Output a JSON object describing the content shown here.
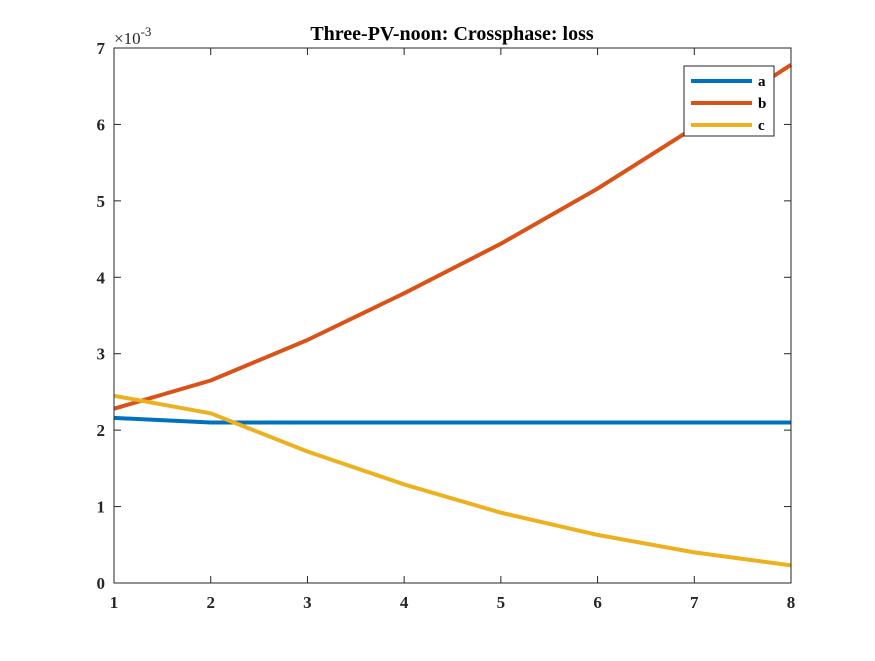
{
  "chart_data": {
    "type": "line",
    "title": "Three-PV-noon: Crossphase: loss",
    "xlabel": "",
    "ylabel": "",
    "xlim": [
      1,
      8
    ],
    "ylim": [
      0,
      7
    ],
    "x_ticks": [
      1,
      2,
      3,
      4,
      5,
      6,
      7,
      8
    ],
    "y_ticks": [
      0,
      1,
      2,
      3,
      4,
      5,
      6,
      7
    ],
    "y_multiplier": "×10",
    "y_multiplier_exponent": "-3",
    "grid": false,
    "legend_position": "top-right",
    "x": [
      1,
      2,
      3,
      4,
      5,
      6,
      7,
      8
    ],
    "series": [
      {
        "name": "a",
        "color": "#0072BD",
        "values": [
          2.16,
          2.1,
          2.1,
          2.1,
          2.1,
          2.1,
          2.1,
          2.1
        ]
      },
      {
        "name": "b",
        "color": "#D95319",
        "values": [
          2.28,
          2.65,
          3.18,
          3.79,
          4.44,
          5.16,
          5.96,
          6.78
        ]
      },
      {
        "name": "c",
        "color": "#EDB120",
        "values": [
          2.45,
          2.22,
          1.72,
          1.29,
          0.92,
          0.63,
          0.4,
          0.23
        ]
      }
    ]
  }
}
